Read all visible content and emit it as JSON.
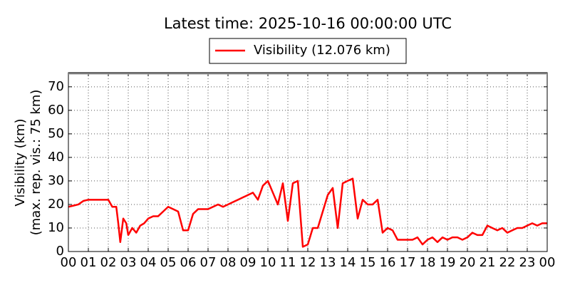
{
  "chart_data": {
    "type": "line",
    "title": "Latest time: 2025-10-16 00:00:00 UTC",
    "ylabel": [
      "Visibility (km)",
      "(max. rep. vis.: 75 km)"
    ],
    "x": [
      0,
      0.25,
      0.5,
      0.75,
      1,
      1.25,
      1.5,
      1.75,
      2,
      2.2,
      2.4,
      2.5,
      2.6,
      2.75,
      2.9,
      3,
      3.2,
      3.4,
      3.6,
      3.8,
      4,
      4.25,
      4.5,
      4.75,
      5,
      5.25,
      5.5,
      5.75,
      6,
      6.25,
      6.5,
      6.75,
      7,
      7.25,
      7.5,
      7.75,
      8,
      8.25,
      8.5,
      8.75,
      9,
      9.25,
      9.5,
      9.75,
      10,
      10.25,
      10.5,
      10.75,
      11,
      11.25,
      11.5,
      11.75,
      12,
      12.25,
      12.5,
      12.75,
      13,
      13.25,
      13.5,
      13.75,
      14,
      14.25,
      14.5,
      14.75,
      15,
      15.25,
      15.5,
      15.75,
      16,
      16.25,
      16.5,
      16.75,
      17,
      17.25,
      17.5,
      17.75,
      18,
      18.25,
      18.5,
      18.75,
      19,
      19.25,
      19.5,
      19.75,
      20,
      20.25,
      20.5,
      20.75,
      21,
      21.25,
      21.5,
      21.75,
      22,
      22.25,
      22.5,
      22.75,
      23,
      23.25,
      23.5,
      23.75,
      24
    ],
    "series": [
      {
        "name": "Visibility (12.076 km)",
        "color": "#ff0000",
        "values": [
          19,
          19.5,
          20,
          21.5,
          22,
          22,
          22,
          22,
          22,
          19,
          19,
          12,
          4,
          14,
          12,
          7,
          10,
          8,
          11,
          12,
          14,
          15,
          15,
          17,
          19,
          18,
          17,
          9,
          9,
          16,
          18,
          18,
          18,
          19,
          20,
          19,
          20,
          21,
          22,
          23,
          24,
          25,
          22,
          28,
          30,
          25,
          20,
          29,
          13,
          29,
          30,
          2,
          3,
          10,
          10,
          17,
          24,
          27,
          10,
          29,
          30,
          31,
          14,
          22,
          20,
          20,
          22,
          8,
          10,
          9,
          5,
          5,
          5,
          5,
          6,
          3,
          5,
          6,
          4,
          6,
          5,
          6,
          6,
          5,
          6,
          8,
          7,
          7,
          11,
          10,
          9,
          10,
          8,
          9,
          10,
          10,
          11,
          12,
          11,
          12,
          12
        ]
      }
    ],
    "xlim": [
      0,
      24
    ],
    "xticks": [
      {
        "value": 0,
        "label": "00"
      },
      {
        "value": 1,
        "label": "01"
      },
      {
        "value": 2,
        "label": "02"
      },
      {
        "value": 3,
        "label": "03"
      },
      {
        "value": 4,
        "label": "04"
      },
      {
        "value": 5,
        "label": "05"
      },
      {
        "value": 6,
        "label": "06"
      },
      {
        "value": 7,
        "label": "07"
      },
      {
        "value": 8,
        "label": "08"
      },
      {
        "value": 9,
        "label": "09"
      },
      {
        "value": 10,
        "label": "10"
      },
      {
        "value": 11,
        "label": "11"
      },
      {
        "value": 12,
        "label": "12"
      },
      {
        "value": 13,
        "label": "13"
      },
      {
        "value": 14,
        "label": "14"
      },
      {
        "value": 15,
        "label": "15"
      },
      {
        "value": 16,
        "label": "16"
      },
      {
        "value": 17,
        "label": "17"
      },
      {
        "value": 18,
        "label": "18"
      },
      {
        "value": 19,
        "label": "19"
      },
      {
        "value": 20,
        "label": "20"
      },
      {
        "value": 21,
        "label": "21"
      },
      {
        "value": 22,
        "label": "22"
      },
      {
        "value": 23,
        "label": "23"
      },
      {
        "value": 24,
        "label": "00"
      }
    ],
    "ylim": [
      0,
      76
    ],
    "yticks": [
      0,
      10,
      20,
      30,
      40,
      50,
      60,
      70
    ],
    "grid": true,
    "legend": "top"
  }
}
